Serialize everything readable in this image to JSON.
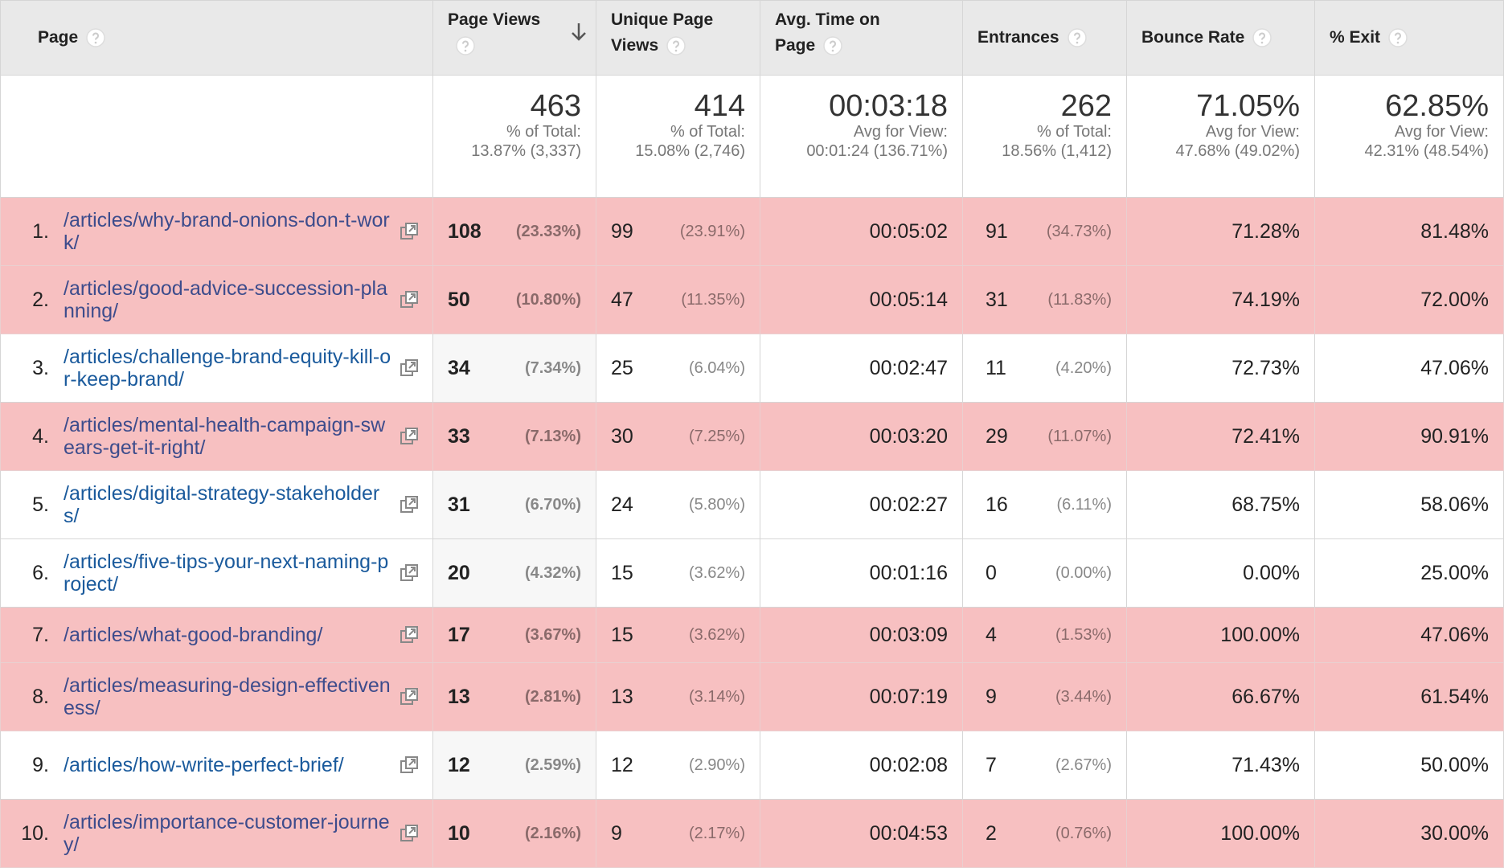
{
  "table": {
    "columns": [
      "Page",
      "Page Views",
      "Unique Page Views",
      "Avg. Time on Page",
      "Entrances",
      "Bounce Rate",
      "% Exit"
    ],
    "summary": [
      {
        "value": "463",
        "caption": "% of Total:",
        "detail": "13.87% (3,337)"
      },
      {
        "value": "414",
        "caption": "% of Total:",
        "detail": "15.08% (2,746)"
      },
      {
        "value": "00:03:18",
        "caption": "Avg for View:",
        "detail": "00:01:24 (136.71%)"
      },
      {
        "value": "262",
        "caption": "% of Total:",
        "detail": "18.56% (1,412)"
      },
      {
        "value": "71.05%",
        "caption": "Avg for View:",
        "detail": "47.68% (49.02%)"
      },
      {
        "value": "62.85%",
        "caption": "Avg for View:",
        "detail": "42.31% (48.54%)"
      }
    ],
    "rows": [
      {
        "rank": "1.",
        "page": "/articles/why-brand-onions-don-t-work/",
        "views": "108",
        "views_pct": "(23.33%)",
        "unique": "99",
        "unique_pct": "(23.91%)",
        "time": "00:05:02",
        "entrances": "91",
        "entrances_pct": "(34.73%)",
        "bounce": "71.28%",
        "exit": "81.48%",
        "highlight": true
      },
      {
        "rank": "2.",
        "page": "/articles/good-advice-succession-planning/",
        "views": "50",
        "views_pct": "(10.80%)",
        "unique": "47",
        "unique_pct": "(11.35%)",
        "time": "00:05:14",
        "entrances": "31",
        "entrances_pct": "(11.83%)",
        "bounce": "74.19%",
        "exit": "72.00%",
        "highlight": true
      },
      {
        "rank": "3.",
        "page": "/articles/challenge-brand-equity-kill-or-keep-brand/",
        "views": "34",
        "views_pct": "(7.34%)",
        "unique": "25",
        "unique_pct": "(6.04%)",
        "time": "00:02:47",
        "entrances": "11",
        "entrances_pct": "(4.20%)",
        "bounce": "72.73%",
        "exit": "47.06%",
        "highlight": false
      },
      {
        "rank": "4.",
        "page": "/articles/mental-health-campaign-swears-get-it-right/",
        "views": "33",
        "views_pct": "(7.13%)",
        "unique": "30",
        "unique_pct": "(7.25%)",
        "time": "00:03:20",
        "entrances": "29",
        "entrances_pct": "(11.07%)",
        "bounce": "72.41%",
        "exit": "90.91%",
        "highlight": true
      },
      {
        "rank": "5.",
        "page": "/articles/digital-strategy-stakeholders/",
        "views": "31",
        "views_pct": "(6.70%)",
        "unique": "24",
        "unique_pct": "(5.80%)",
        "time": "00:02:27",
        "entrances": "16",
        "entrances_pct": "(6.11%)",
        "bounce": "68.75%",
        "exit": "58.06%",
        "highlight": false
      },
      {
        "rank": "6.",
        "page": "/articles/five-tips-your-next-naming-project/",
        "views": "20",
        "views_pct": "(4.32%)",
        "unique": "15",
        "unique_pct": "(3.62%)",
        "time": "00:01:16",
        "entrances": "0",
        "entrances_pct": "(0.00%)",
        "bounce": "0.00%",
        "exit": "25.00%",
        "highlight": false
      },
      {
        "rank": "7.",
        "page": "/articles/what-good-branding/",
        "views": "17",
        "views_pct": "(3.67%)",
        "unique": "15",
        "unique_pct": "(3.62%)",
        "time": "00:03:09",
        "entrances": "4",
        "entrances_pct": "(1.53%)",
        "bounce": "100.00%",
        "exit": "47.06%",
        "highlight": true
      },
      {
        "rank": "8.",
        "page": "/articles/measuring-design-effectiveness/",
        "views": "13",
        "views_pct": "(2.81%)",
        "unique": "13",
        "unique_pct": "(3.14%)",
        "time": "00:07:19",
        "entrances": "9",
        "entrances_pct": "(3.44%)",
        "bounce": "66.67%",
        "exit": "61.54%",
        "highlight": true
      },
      {
        "rank": "9.",
        "page": "/articles/how-write-perfect-brief/",
        "views": "12",
        "views_pct": "(2.59%)",
        "unique": "12",
        "unique_pct": "(2.90%)",
        "time": "00:02:08",
        "entrances": "7",
        "entrances_pct": "(2.67%)",
        "bounce": "71.43%",
        "exit": "50.00%",
        "highlight": false
      },
      {
        "rank": "10.",
        "page": "/articles/importance-customer-journey/",
        "views": "10",
        "views_pct": "(2.16%)",
        "unique": "9",
        "unique_pct": "(2.17%)",
        "time": "00:04:53",
        "entrances": "2",
        "entrances_pct": "(0.76%)",
        "bounce": "100.00%",
        "exit": "30.00%",
        "highlight": true
      }
    ]
  }
}
